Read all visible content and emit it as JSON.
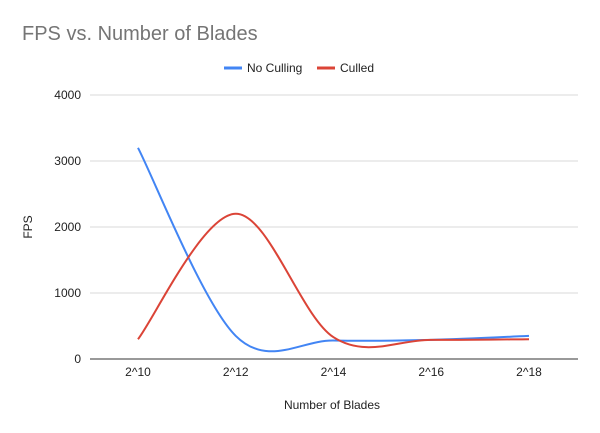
{
  "chart_data": {
    "type": "line",
    "title": "FPS vs. Number of Blades",
    "xlabel": "Number of Blades",
    "ylabel": "FPS",
    "categories": [
      "2^10",
      "2^12",
      "2^14",
      "2^16",
      "2^18"
    ],
    "ylim": [
      0,
      4000
    ],
    "yticks": [
      0,
      1000,
      2000,
      3000,
      4000
    ],
    "grid": true,
    "legend_position": "top",
    "series": [
      {
        "name": "No Culling",
        "color": "#4285f4",
        "values": [
          3200,
          350,
          280,
          290,
          350
        ]
      },
      {
        "name": "Culled",
        "color": "#db4437",
        "values": [
          300,
          2200,
          330,
          290,
          300
        ]
      }
    ]
  }
}
